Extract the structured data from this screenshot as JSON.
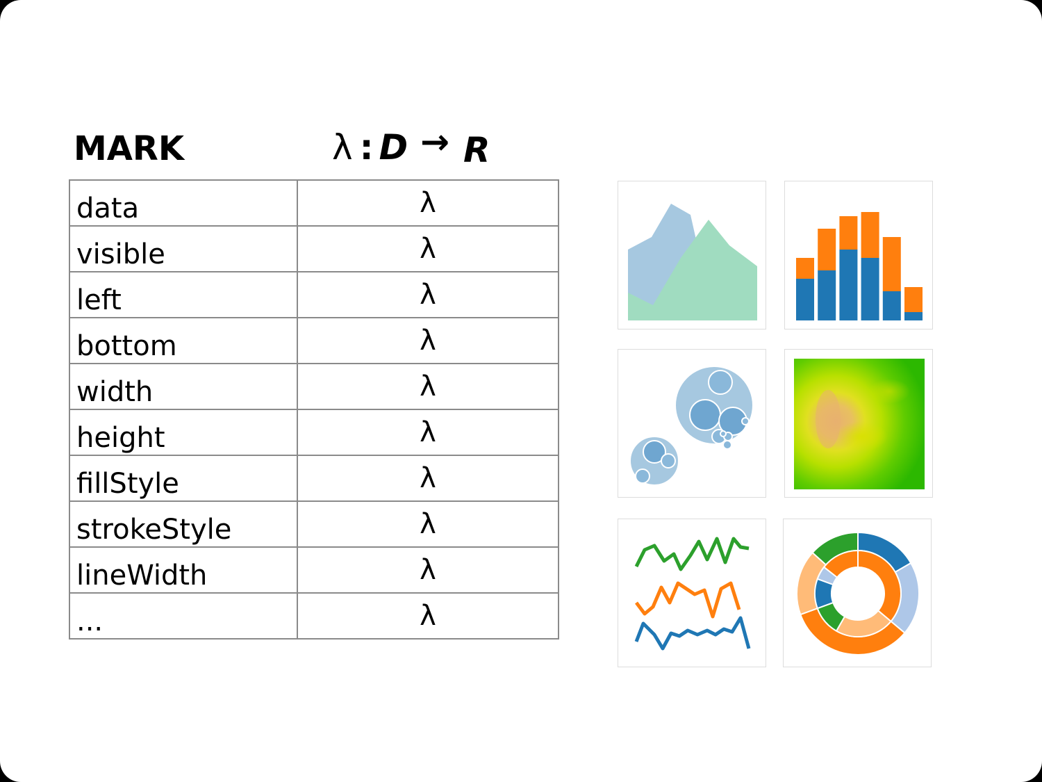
{
  "header": {
    "mark_label": "MARK",
    "formula": {
      "lambda": "λ",
      "colon": ":",
      "domain": "D",
      "arrow": "→",
      "range": "R"
    }
  },
  "properties": [
    {
      "name": "data",
      "fn": "λ"
    },
    {
      "name": "visible",
      "fn": "λ"
    },
    {
      "name": "left",
      "fn": "λ"
    },
    {
      "name": "bottom",
      "fn": "λ"
    },
    {
      "name": "width",
      "fn": "λ"
    },
    {
      "name": "height",
      "fn": "λ"
    },
    {
      "name": "fillStyle",
      "fn": "λ"
    },
    {
      "name": "strokeStyle",
      "fn": "λ"
    },
    {
      "name": "lineWidth",
      "fn": "λ"
    },
    {
      "name": "...",
      "fn": "λ"
    }
  ],
  "thumbnails": [
    {
      "kind": "area-chart",
      "colors": [
        "#a6c8e0",
        "#8fd9b6",
        "#71bfb8"
      ]
    },
    {
      "kind": "stacked-bar-chart",
      "colors": [
        "#1f77b4",
        "#ff7f0e"
      ],
      "values": [
        [
          2.0,
          1.0
        ],
        [
          2.4,
          2.0
        ],
        [
          3.4,
          1.6
        ],
        [
          3.0,
          2.2
        ],
        [
          1.4,
          2.6
        ],
        [
          0.4,
          1.2
        ]
      ]
    },
    {
      "kind": "bubble-pack-chart",
      "colors": [
        "#a6c8e0",
        "#6fa6d0"
      ]
    },
    {
      "kind": "heatmap",
      "colors": [
        "#2cb800",
        "#c8e800",
        "#e8c060"
      ]
    },
    {
      "kind": "line-chart",
      "colors": [
        "#2ca02c",
        "#ff7f0e",
        "#1f77b4"
      ]
    },
    {
      "kind": "sunburst-chart",
      "colors": [
        "#1f77b4",
        "#aec7e8",
        "#ff7f0e",
        "#ffbb78",
        "#2ca02c"
      ]
    }
  ]
}
